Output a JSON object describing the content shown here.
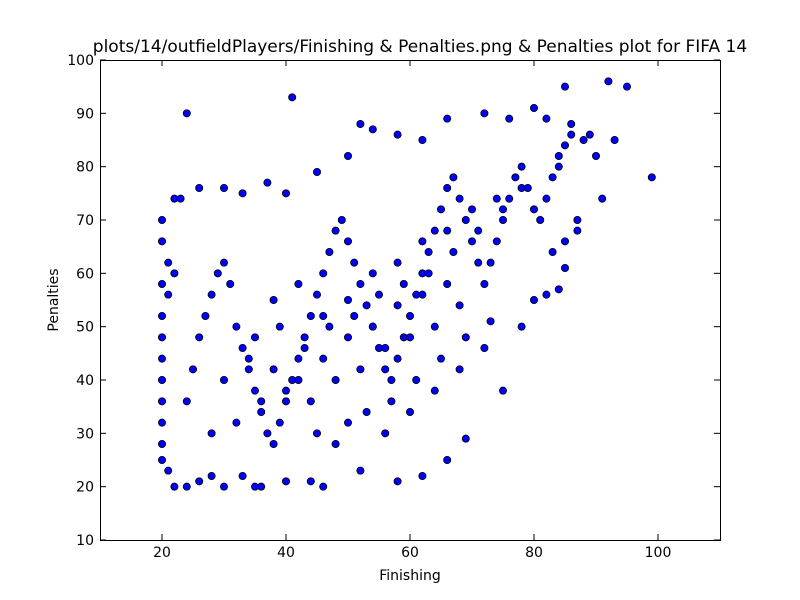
{
  "chart_data": {
    "type": "scatter",
    "title": "plots/14/outfieldPlayers/Finishing & Penalties.png & Penalties plot for FIFA 14",
    "xlabel": "Finishing",
    "ylabel": "Penalties",
    "xlim": [
      10,
      110
    ],
    "ylim": [
      10,
      100
    ],
    "xticks": [
      20,
      40,
      60,
      80,
      100
    ],
    "yticks": [
      10,
      20,
      30,
      40,
      50,
      60,
      70,
      80,
      90,
      100
    ],
    "grid": false,
    "legend": "none",
    "marker_color": "#0000ff",
    "marker_edge": "#000000",
    "series": [
      {
        "points": [
          [
            24,
            90
          ],
          [
            41,
            93
          ],
          [
            85,
            95
          ],
          [
            92,
            96
          ],
          [
            95,
            95
          ],
          [
            99,
            78
          ],
          [
            89,
            86
          ],
          [
            93,
            85
          ],
          [
            20,
            70
          ],
          [
            22,
            74
          ],
          [
            23,
            74
          ],
          [
            20,
            66
          ],
          [
            21,
            62
          ],
          [
            22,
            60
          ],
          [
            20,
            58
          ],
          [
            21,
            56
          ],
          [
            20,
            52
          ],
          [
            20,
            48
          ],
          [
            20,
            44
          ],
          [
            20,
            40
          ],
          [
            20,
            36
          ],
          [
            20,
            32
          ],
          [
            20,
            28
          ],
          [
            20,
            25
          ],
          [
            21,
            23
          ],
          [
            22,
            20
          ],
          [
            24,
            20
          ],
          [
            26,
            21
          ],
          [
            28,
            22
          ],
          [
            30,
            20
          ],
          [
            33,
            22
          ],
          [
            35,
            20
          ],
          [
            36,
            20
          ],
          [
            40,
            21
          ],
          [
            44,
            21
          ],
          [
            46,
            20
          ],
          [
            52,
            23
          ],
          [
            58,
            21
          ],
          [
            62,
            22
          ],
          [
            66,
            25
          ],
          [
            69,
            29
          ],
          [
            75,
            38
          ],
          [
            78,
            50
          ],
          [
            82,
            56
          ],
          [
            84,
            57
          ],
          [
            85,
            61
          ],
          [
            80,
            55
          ],
          [
            73,
            51
          ],
          [
            26,
            76
          ],
          [
            30,
            76
          ],
          [
            33,
            75
          ],
          [
            37,
            77
          ],
          [
            40,
            75
          ],
          [
            45,
            79
          ],
          [
            50,
            82
          ],
          [
            52,
            88
          ],
          [
            54,
            87
          ],
          [
            58,
            86
          ],
          [
            62,
            85
          ],
          [
            66,
            89
          ],
          [
            72,
            90
          ],
          [
            76,
            89
          ],
          [
            80,
            91
          ],
          [
            82,
            89
          ],
          [
            86,
            88
          ],
          [
            88,
            85
          ],
          [
            90,
            82
          ],
          [
            91,
            74
          ],
          [
            87,
            70
          ],
          [
            85,
            66
          ],
          [
            83,
            64
          ],
          [
            87,
            68
          ],
          [
            24,
            36
          ],
          [
            25,
            42
          ],
          [
            26,
            48
          ],
          [
            27,
            52
          ],
          [
            28,
            56
          ],
          [
            29,
            60
          ],
          [
            30,
            62
          ],
          [
            31,
            58
          ],
          [
            32,
            50
          ],
          [
            33,
            46
          ],
          [
            34,
            42
          ],
          [
            35,
            38
          ],
          [
            36,
            34
          ],
          [
            37,
            30
          ],
          [
            38,
            28
          ],
          [
            39,
            32
          ],
          [
            40,
            36
          ],
          [
            41,
            40
          ],
          [
            42,
            44
          ],
          [
            43,
            48
          ],
          [
            44,
            52
          ],
          [
            45,
            56
          ],
          [
            46,
            60
          ],
          [
            47,
            64
          ],
          [
            48,
            68
          ],
          [
            49,
            70
          ],
          [
            50,
            66
          ],
          [
            51,
            62
          ],
          [
            52,
            58
          ],
          [
            53,
            54
          ],
          [
            54,
            50
          ],
          [
            55,
            46
          ],
          [
            56,
            42
          ],
          [
            57,
            40
          ],
          [
            58,
            44
          ],
          [
            59,
            48
          ],
          [
            60,
            52
          ],
          [
            61,
            56
          ],
          [
            62,
            60
          ],
          [
            63,
            64
          ],
          [
            64,
            68
          ],
          [
            65,
            72
          ],
          [
            66,
            76
          ],
          [
            67,
            78
          ],
          [
            68,
            74
          ],
          [
            69,
            70
          ],
          [
            70,
            66
          ],
          [
            71,
            62
          ],
          [
            72,
            58
          ],
          [
            73,
            62
          ],
          [
            74,
            66
          ],
          [
            75,
            70
          ],
          [
            76,
            74
          ],
          [
            77,
            78
          ],
          [
            78,
            80
          ],
          [
            79,
            76
          ],
          [
            80,
            72
          ],
          [
            81,
            70
          ],
          [
            82,
            74
          ],
          [
            83,
            78
          ],
          [
            84,
            80
          ],
          [
            85,
            84
          ],
          [
            86,
            86
          ],
          [
            84,
            82
          ],
          [
            38,
            55
          ],
          [
            42,
            58
          ],
          [
            46,
            52
          ],
          [
            50,
            55
          ],
          [
            54,
            60
          ],
          [
            58,
            62
          ],
          [
            62,
            66
          ],
          [
            66,
            68
          ],
          [
            70,
            72
          ],
          [
            74,
            74
          ],
          [
            78,
            76
          ],
          [
            35,
            48
          ],
          [
            39,
            50
          ],
          [
            43,
            46
          ],
          [
            47,
            50
          ],
          [
            51,
            52
          ],
          [
            55,
            56
          ],
          [
            59,
            58
          ],
          [
            63,
            60
          ],
          [
            67,
            64
          ],
          [
            71,
            68
          ],
          [
            75,
            72
          ],
          [
            30,
            40
          ],
          [
            34,
            44
          ],
          [
            38,
            42
          ],
          [
            42,
            40
          ],
          [
            46,
            44
          ],
          [
            50,
            48
          ],
          [
            54,
            50
          ],
          [
            58,
            54
          ],
          [
            62,
            56
          ],
          [
            66,
            58
          ],
          [
            28,
            30
          ],
          [
            32,
            32
          ],
          [
            36,
            36
          ],
          [
            40,
            38
          ],
          [
            44,
            36
          ],
          [
            48,
            40
          ],
          [
            52,
            42
          ],
          [
            56,
            46
          ],
          [
            60,
            48
          ],
          [
            64,
            50
          ],
          [
            68,
            54
          ],
          [
            56,
            30
          ],
          [
            60,
            34
          ],
          [
            64,
            38
          ],
          [
            68,
            42
          ],
          [
            72,
            46
          ],
          [
            45,
            30
          ],
          [
            48,
            28
          ],
          [
            50,
            32
          ],
          [
            53,
            34
          ],
          [
            57,
            36
          ],
          [
            61,
            40
          ],
          [
            65,
            44
          ],
          [
            69,
            48
          ]
        ]
      }
    ]
  }
}
